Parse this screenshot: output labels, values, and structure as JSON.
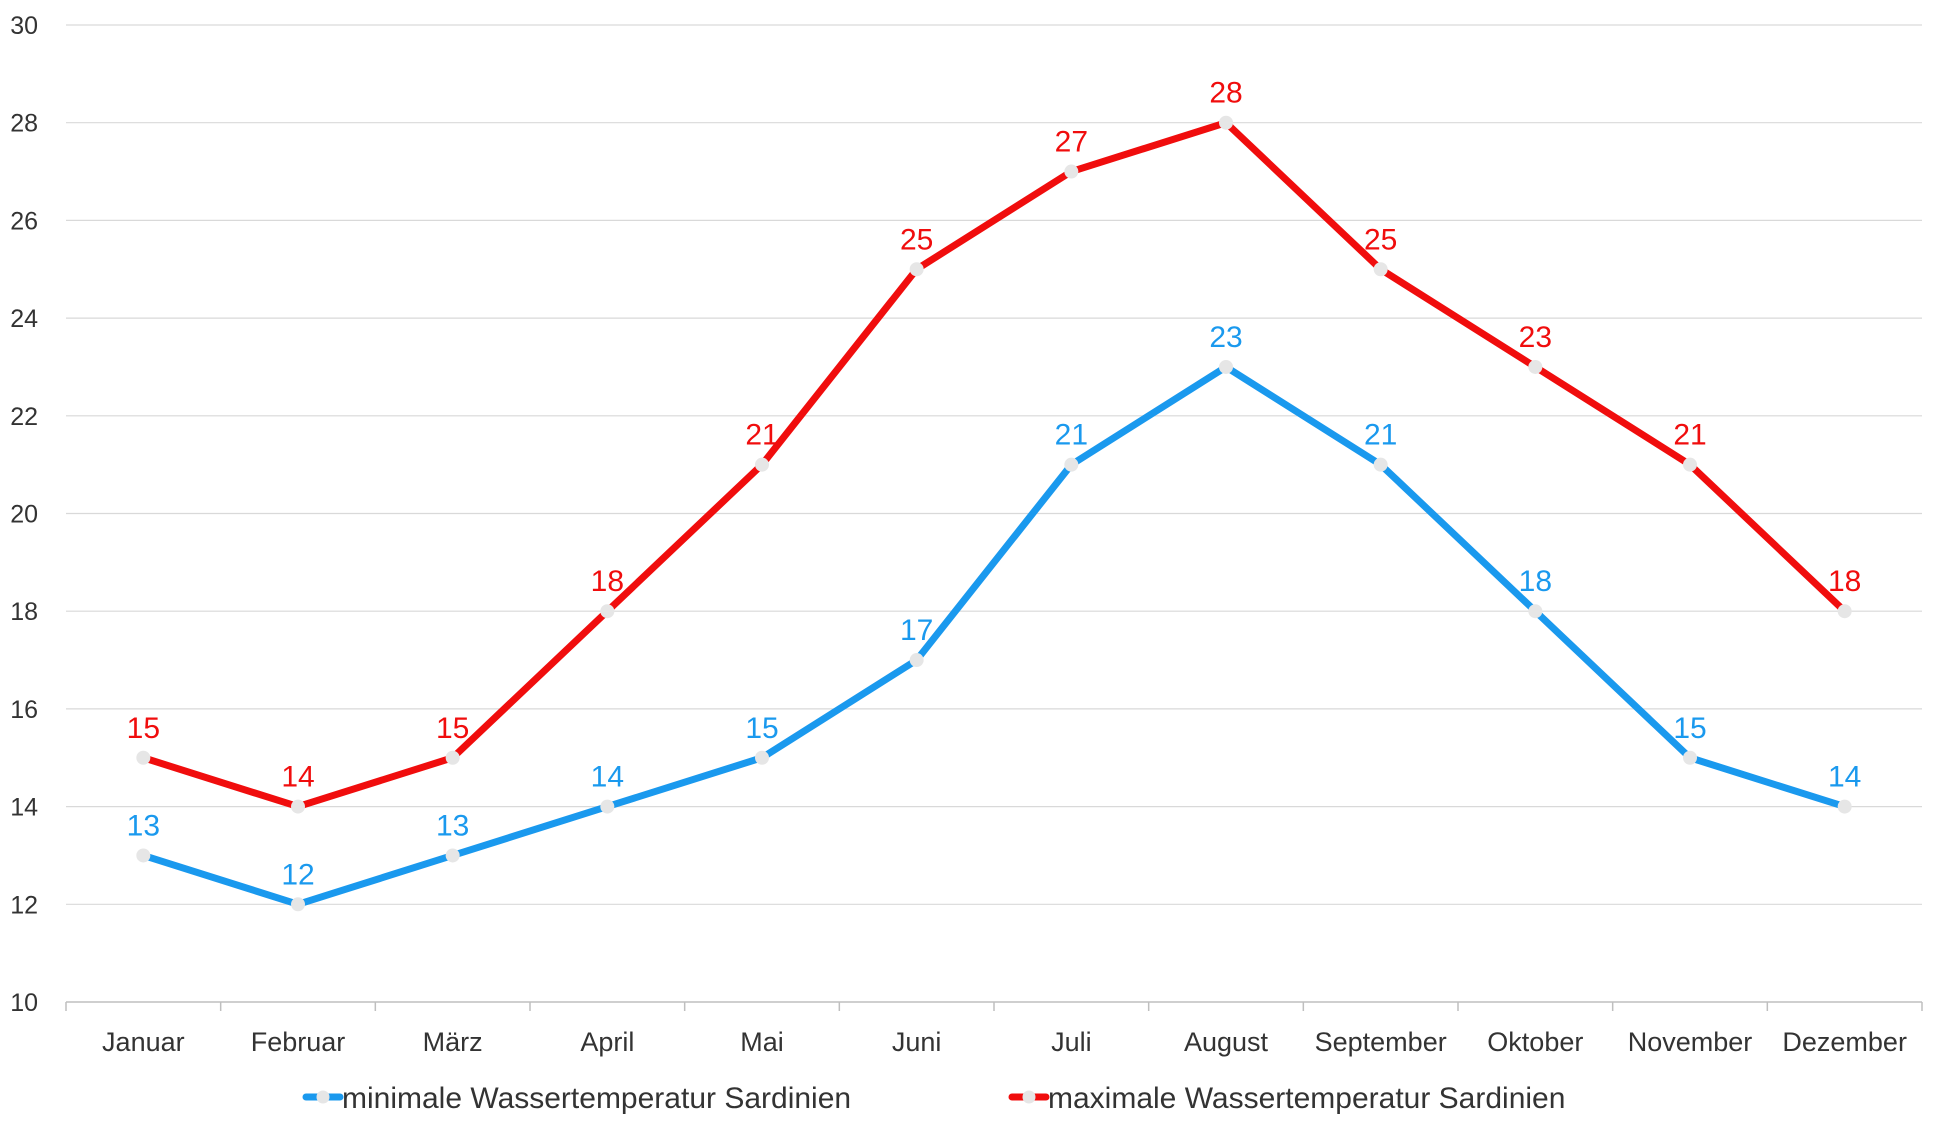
{
  "chart_data": {
    "type": "line",
    "categories": [
      "Januar",
      "Februar",
      "März",
      "April",
      "Mai",
      "Juni",
      "Juli",
      "August",
      "September",
      "Oktober",
      "November",
      "Dezember"
    ],
    "series": [
      {
        "name": "minimale Wassertemperatur Sardinien",
        "color": "#1a99ee",
        "values": [
          13,
          12,
          13,
          14,
          15,
          17,
          21,
          23,
          21,
          18,
          15,
          14
        ]
      },
      {
        "name": "maximale Wassertemperatur Sardinien",
        "color": "#f00d0d",
        "values": [
          15,
          14,
          15,
          18,
          21,
          25,
          27,
          28,
          25,
          23,
          21,
          18
        ]
      }
    ],
    "ylim": [
      10,
      30
    ],
    "yticks": [
      10,
      12,
      14,
      16,
      18,
      20,
      22,
      24,
      26,
      28,
      30
    ],
    "grid": true,
    "legend_position": "bottom",
    "data_labels": true,
    "marker_color": "#e6e6e6"
  }
}
